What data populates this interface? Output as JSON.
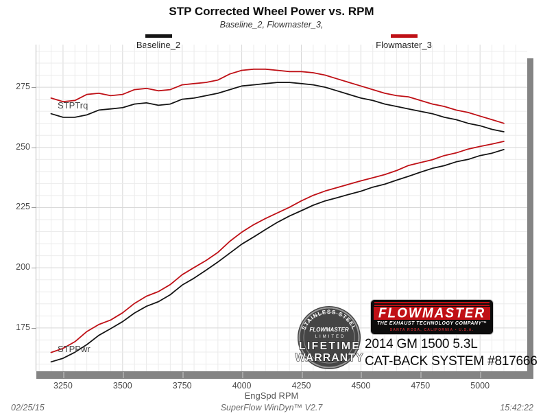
{
  "title": "STP Corrected Wheel Power vs. RPM",
  "subtitle": "Baseline_2, Flowmaster_3,",
  "legend": [
    {
      "label": "Baseline_2",
      "color": "#141414"
    },
    {
      "label": "Flowmaster_3",
      "color": "#bf1016"
    }
  ],
  "curve_labels": {
    "torque": "STPTrq",
    "power": "STPPwr"
  },
  "axis": {
    "x_label": "EngSpd RPM"
  },
  "footer": {
    "date": "02/25/15",
    "app": "SuperFlow WinDyn™ V2.7",
    "time": "15:42:22"
  },
  "branding": {
    "badge": {
      "arc_text": "STAINLESS STEEL",
      "brand": "FLOWMASTER",
      "limited": "LIMITED",
      "line1": "LIFETIME",
      "line2": "WARRANTY"
    },
    "logo": {
      "name": "FLOWMASTER",
      "tagline": "THE EXHAUST TECHNOLOGY COMPANY™",
      "address": "SANTA ROSA, CALIFORNIA • U.S.A."
    },
    "vehicle_line1": "2014 GM 1500 5.3L",
    "vehicle_line2": "CAT-BACK SYSTEM #817666"
  },
  "chart_data": {
    "type": "line",
    "title": "STP Corrected Wheel Power vs. RPM",
    "xlabel": "EngSpd RPM",
    "ylabel": "",
    "legend_position": "top",
    "grid": "on (minor + major light gray)",
    "x_range": [
      3138,
      5198
    ],
    "y_range": [
      157,
      292.7
    ],
    "x_ticks": [
      3250,
      3500,
      3750,
      4000,
      4250,
      4500,
      4750,
      5000
    ],
    "y_ticks": [
      175,
      200,
      225,
      250,
      275
    ],
    "x_minor_step": 50,
    "y_minor_step": 5,
    "x": [
      3200,
      3250,
      3300,
      3350,
      3400,
      3450,
      3500,
      3550,
      3600,
      3650,
      3700,
      3750,
      3800,
      3850,
      3900,
      3950,
      4000,
      4050,
      4100,
      4150,
      4200,
      4250,
      4300,
      4350,
      4400,
      4450,
      4500,
      4550,
      4600,
      4650,
      4700,
      4750,
      4800,
      4850,
      4900,
      4950,
      5000,
      5050,
      5100
    ],
    "series": [
      {
        "name": "Baseline_2 STPTrq",
        "color": "#141414",
        "values": [
          264,
          262.5,
          262.5,
          263.5,
          265.5,
          266,
          266.5,
          268,
          268.5,
          267.5,
          268,
          270,
          270.5,
          271.5,
          272.5,
          274,
          275.5,
          276,
          276.5,
          277,
          277,
          276.5,
          276,
          275,
          273.5,
          272,
          270.5,
          269.5,
          268,
          267,
          266,
          265,
          264,
          262.5,
          261.5,
          260,
          259,
          257.5,
          256.5
        ]
      },
      {
        "name": "Flowmaster_3 STPTrq",
        "color": "#bf1016",
        "values": [
          270.5,
          269,
          269.5,
          272,
          272.5,
          271.5,
          272,
          274,
          274.5,
          273.5,
          274,
          276,
          276.5,
          277,
          278,
          280.5,
          282,
          282.5,
          282.5,
          282,
          281.5,
          281.5,
          281,
          280,
          278.5,
          277,
          275.5,
          274,
          272.5,
          271.5,
          271,
          269.5,
          268,
          267,
          265.5,
          264.5,
          263,
          261.5,
          260
        ]
      },
      {
        "name": "Baseline_2 STPPwr",
        "color": "#141414",
        "values": [
          160.9,
          162.4,
          164.9,
          168.1,
          171.9,
          174.7,
          177.6,
          181.2,
          184,
          185.9,
          188.8,
          192.8,
          195.7,
          199,
          202.4,
          206.1,
          209.8,
          212.8,
          215.9,
          218.9,
          221.5,
          223.7,
          226,
          227.8,
          229.1,
          230.5,
          231.8,
          233.5,
          234.7,
          236.4,
          238,
          239.7,
          241.3,
          242.4,
          244,
          245,
          246.6,
          247.6,
          249.1
        ]
      },
      {
        "name": "Flowmaster_3 STPPwr",
        "color": "#bf1016",
        "values": [
          164.8,
          166.5,
          169.3,
          173.5,
          176.4,
          178.3,
          181.3,
          185.2,
          188.2,
          190.1,
          193,
          197.1,
          200.1,
          203,
          206.4,
          211,
          214.8,
          217.9,
          220.5,
          222.8,
          225.1,
          227.8,
          230.1,
          231.9,
          233.3,
          234.7,
          236.1,
          237.4,
          238.7,
          240.4,
          242.5,
          243.7,
          244.9,
          246.6,
          247.7,
          249.3,
          250.4,
          251.4,
          252.5
        ]
      }
    ]
  }
}
